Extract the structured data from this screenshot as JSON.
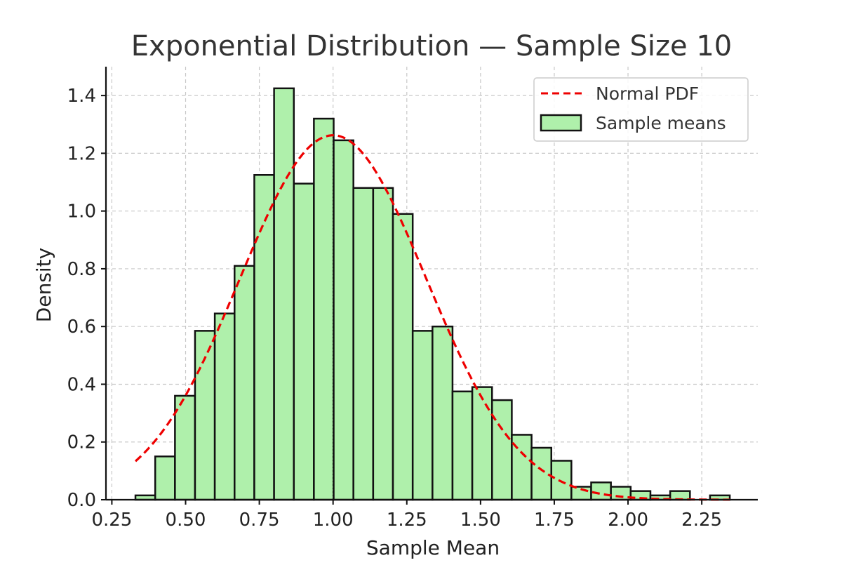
{
  "chart_data": {
    "type": "bar",
    "title": "Exponential Distribution — Sample Size 10",
    "xlabel": "Sample Mean",
    "ylabel": "Density",
    "xlim": [
      0.23,
      2.44
    ],
    "ylim": [
      0,
      1.5
    ],
    "xticks": [
      0.25,
      0.5,
      0.75,
      1.0,
      1.25,
      1.5,
      1.75,
      2.0,
      2.25
    ],
    "xtick_labels": [
      "0.25",
      "0.50",
      "0.75",
      "1.00",
      "1.25",
      "1.50",
      "1.75",
      "2.00",
      "2.25"
    ],
    "yticks": [
      0.0,
      0.2,
      0.4,
      0.6,
      0.8,
      1.0,
      1.2,
      1.4
    ],
    "ytick_labels": [
      "0.0",
      "0.2",
      "0.4",
      "0.6",
      "0.8",
      "1.0",
      "1.2",
      "1.4"
    ],
    "grid": true,
    "legend_position": "top-right",
    "histogram": {
      "name": "Sample means",
      "color": "#aff0ab",
      "edgecolor": "#111111",
      "bin_edges": [
        0.33,
        0.397,
        0.464,
        0.532,
        0.599,
        0.666,
        0.733,
        0.8,
        0.867,
        0.935,
        1.002,
        1.069,
        1.136,
        1.203,
        1.27,
        1.337,
        1.405,
        1.472,
        1.539,
        1.606,
        1.673,
        1.74,
        1.808,
        1.875,
        1.942,
        2.009,
        2.076,
        2.143,
        2.21,
        2.278,
        2.345
      ],
      "densities": [
        0.015,
        0.15,
        0.36,
        0.585,
        0.645,
        0.81,
        1.125,
        1.425,
        1.095,
        1.32,
        1.245,
        1.08,
        1.08,
        0.99,
        0.585,
        0.6,
        0.375,
        0.39,
        0.345,
        0.225,
        0.18,
        0.135,
        0.045,
        0.06,
        0.045,
        0.03,
        0.015,
        0.03,
        0.0,
        0.015
      ]
    },
    "normal_pdf": {
      "name": "Normal PDF",
      "color": "#ee0000",
      "linestyle": "dashed",
      "mean": 1.0,
      "std": 0.316,
      "x_range": [
        0.33,
        2.345
      ]
    },
    "mean_line": {
      "x": 1.0,
      "color": "#111111",
      "linestyle": "dotted"
    }
  }
}
